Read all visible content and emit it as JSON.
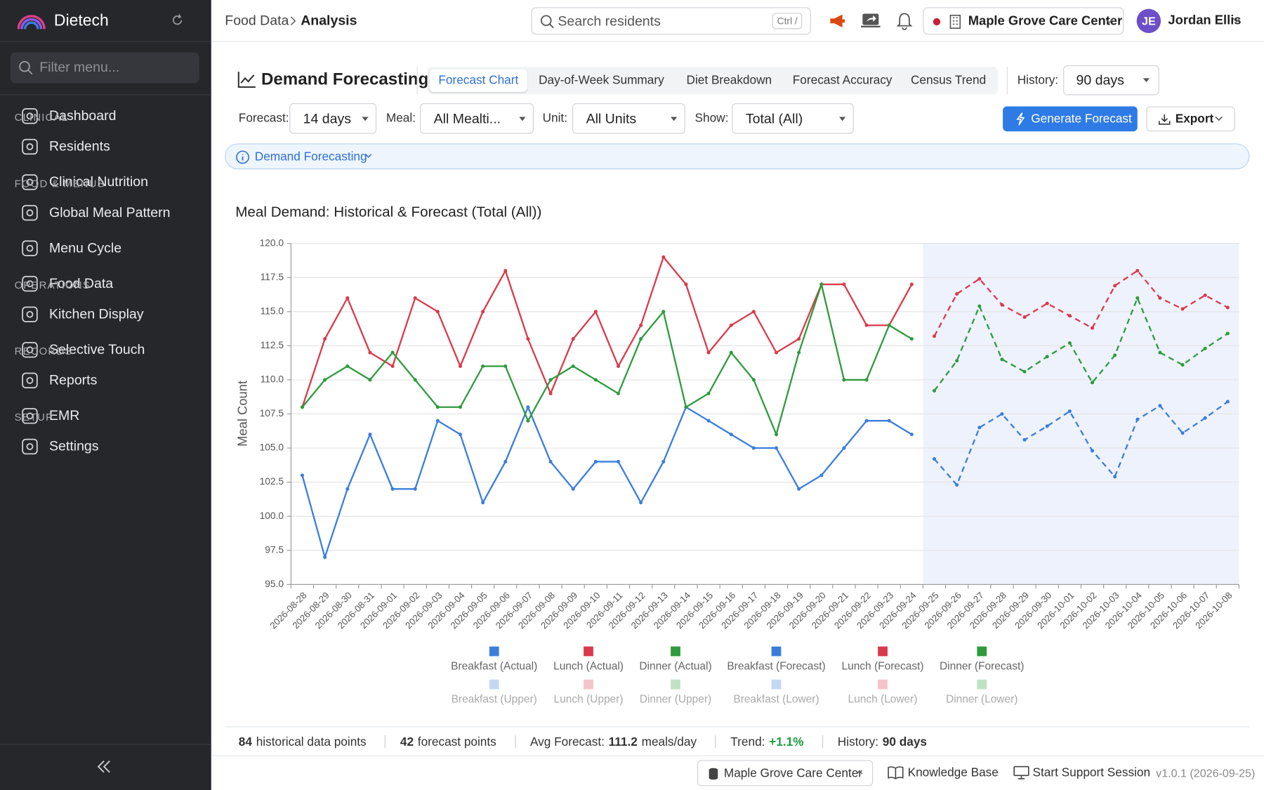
{
  "sidebar": {
    "brand": "Dietech",
    "filter_placeholder": "Filter menu...",
    "sections": [
      {
        "items": [
          "Dashboard"
        ]
      },
      {
        "title": "CLINICAL",
        "items": [
          "Residents",
          "Clinical Nutrition"
        ]
      },
      {
        "title": "FOOD & MENUS",
        "items": [
          "Global Meal Pattern",
          "Menu Cycle",
          "Food Data"
        ]
      },
      {
        "title": "OPERATIONS",
        "items": [
          "Kitchen Display",
          "Selective Touch"
        ]
      },
      {
        "title": "RECORDS",
        "items": [
          "Reports",
          "EMR"
        ]
      },
      {
        "title": "SETUP",
        "items": [
          "Settings"
        ]
      }
    ]
  },
  "header": {
    "breadcrumb": [
      "Food Data",
      "Analysis"
    ],
    "search_placeholder": "Search residents",
    "search_shortcut": "Ctrl /",
    "facility": "Maple Grove Care Center",
    "user_initials": "JE",
    "user_name": "Jordan Ellis"
  },
  "toolbar": {
    "title": "Demand Forecasting",
    "tabs": [
      "Forecast Chart",
      "Day-of-Week Summary",
      "Diet Breakdown",
      "Forecast Accuracy",
      "Census Trend"
    ],
    "active_tab": 0,
    "history_label": "History:",
    "history_value": "90 days",
    "filters": [
      {
        "label": "Forecast:",
        "value": "14 days"
      },
      {
        "label": "Meal:",
        "value": "All Mealti..."
      },
      {
        "label": "Unit:",
        "value": "All Units"
      },
      {
        "label": "Show:",
        "value": "Total (All)"
      }
    ],
    "generate_button": "Generate Forecast",
    "export_button": "Export",
    "info": "Demand Forecasting"
  },
  "chart_data": {
    "type": "line",
    "title": "Meal Demand: Historical & Forecast (Total (All))",
    "y_label": "Meal Count",
    "categories": [
      "2026-08-28",
      "2026-08-29",
      "2026-08-30",
      "2026-08-31",
      "2026-09-01",
      "2026-09-02",
      "2026-09-03",
      "2026-09-04",
      "2026-09-05",
      "2026-09-06",
      "2026-09-07",
      "2026-09-08",
      "2026-09-09",
      "2026-09-10",
      "2026-09-11",
      "2026-09-12",
      "2026-09-13",
      "2026-09-14",
      "2026-09-15",
      "2026-09-16",
      "2026-09-17",
      "2026-09-18",
      "2026-09-19",
      "2026-09-20",
      "2026-09-21",
      "2026-09-22",
      "2026-09-23",
      "2026-09-24",
      "2026-09-25",
      "2026-09-26",
      "2026-09-27",
      "2026-09-28",
      "2026-09-29",
      "2026-09-30",
      "2026-10-01",
      "2026-10-02",
      "2026-10-03",
      "2026-10-04",
      "2026-10-05",
      "2026-10-06",
      "2026-10-07",
      "2026-10-08"
    ],
    "ylim": [
      95,
      120
    ],
    "yticks": [
      {
        "value": 95,
        "label": "95.0"
      },
      {
        "value": 97.5,
        "label": "97.5"
      },
      {
        "value": 100,
        "label": "100.0"
      },
      {
        "value": 102.5,
        "label": "102.5"
      },
      {
        "value": 105,
        "label": "105.0"
      },
      {
        "value": 107.5,
        "label": "107.5"
      },
      {
        "value": 110,
        "label": "110.0"
      },
      {
        "value": 112.5,
        "label": "112.5"
      },
      {
        "value": 115,
        "label": "115.0"
      },
      {
        "value": 117.5,
        "label": "117.5"
      },
      {
        "value": 120,
        "label": "120.0"
      }
    ],
    "grid": true,
    "series": [
      {
        "name": "Breakfast (Actual)",
        "color": "#3b7ddd",
        "values": [
          103,
          97,
          102,
          106,
          102,
          102,
          107,
          106,
          101,
          104,
          108,
          104,
          102,
          104,
          104,
          101,
          104,
          108,
          107,
          106,
          105,
          105,
          102,
          103,
          105,
          107,
          107,
          106,
          null,
          null,
          null,
          null,
          null,
          null,
          null,
          null,
          null,
          null,
          null,
          null,
          null,
          null
        ]
      },
      {
        "name": "Lunch (Actual)",
        "color": "#d93a4b",
        "values": [
          108,
          113,
          116,
          112,
          111,
          116,
          115,
          111,
          115,
          118,
          113,
          109,
          113,
          115,
          111,
          114,
          119,
          117,
          112,
          114,
          115,
          112,
          113,
          117,
          117,
          114,
          114,
          117,
          null,
          null,
          null,
          null,
          null,
          null,
          null,
          null,
          null,
          null,
          null,
          null,
          null,
          null
        ]
      },
      {
        "name": "Dinner (Actual)",
        "color": "#2e9b3e",
        "values": [
          108,
          110,
          111,
          110,
          112,
          110,
          108,
          108,
          111,
          111,
          107,
          110,
          111,
          110,
          109,
          113,
          115,
          108,
          109,
          112,
          110,
          106,
          112,
          117,
          110,
          110,
          114,
          113,
          null,
          null,
          null,
          null,
          null,
          null,
          null,
          null,
          null,
          null,
          null,
          null,
          null,
          null
        ]
      },
      {
        "name": "Breakfast (Forecast)",
        "color": "#3b7ddd",
        "dashed": true,
        "values": [
          null,
          null,
          null,
          null,
          null,
          null,
          null,
          null,
          null,
          null,
          null,
          null,
          null,
          null,
          null,
          null,
          null,
          null,
          null,
          null,
          null,
          null,
          null,
          null,
          null,
          null,
          null,
          null,
          104.2,
          102.3,
          106.5,
          107.5,
          105.6,
          106.6,
          107.7,
          104.8,
          102.9,
          107.1,
          108.1,
          106.1,
          107.2,
          108.4
        ]
      },
      {
        "name": "Lunch (Forecast)",
        "color": "#d93a4b",
        "dashed": true,
        "values": [
          null,
          null,
          null,
          null,
          null,
          null,
          null,
          null,
          null,
          null,
          null,
          null,
          null,
          null,
          null,
          null,
          null,
          null,
          null,
          null,
          null,
          null,
          null,
          null,
          null,
          null,
          null,
          null,
          113.2,
          116.3,
          117.4,
          115.5,
          114.6,
          115.6,
          114.7,
          113.8,
          116.9,
          118.0,
          116.0,
          115.2,
          116.2,
          115.3
        ]
      },
      {
        "name": "Dinner (Forecast)",
        "color": "#2e9b3e",
        "dashed": true,
        "values": [
          null,
          null,
          null,
          null,
          null,
          null,
          null,
          null,
          null,
          null,
          null,
          null,
          null,
          null,
          null,
          null,
          null,
          null,
          null,
          null,
          null,
          null,
          null,
          null,
          null,
          null,
          null,
          null,
          109.2,
          111.4,
          115.4,
          111.5,
          110.6,
          111.7,
          112.7,
          109.8,
          111.8,
          116.0,
          112.0,
          111.1,
          112.3,
          113.4
        ]
      },
      {
        "name": "Breakfast (Upper)",
        "color": "#3b7ddd",
        "hidden": true
      },
      {
        "name": "Lunch (Upper)",
        "color": "#d93a4b",
        "hidden": true
      },
      {
        "name": "Dinner (Upper)",
        "color": "#2e9b3e",
        "hidden": true
      },
      {
        "name": "Breakfast (Lower)",
        "color": "#3b7ddd",
        "hidden": true
      },
      {
        "name": "Lunch (Lower)",
        "color": "#d93a4b",
        "hidden": true
      },
      {
        "name": "Dinner (Lower)",
        "color": "#2e9b3e",
        "hidden": true
      }
    ],
    "forecast_shade": "#eef2fc"
  },
  "stats": [
    {
      "value": "84",
      "text": "historical data points"
    },
    {
      "value": "42",
      "text": "forecast points"
    },
    {
      "label": "Avg Forecast:",
      "value": "111.2",
      "unit": "meals/day"
    },
    {
      "label": "Trend:",
      "value": "+1.1%",
      "value_color": "#1e9e3e"
    },
    {
      "label": "History:",
      "value": "90 days"
    }
  ],
  "footer": {
    "facility": "Maple Grove Care Center",
    "links": [
      "Knowledge Base",
      "Start Support Session"
    ],
    "version": "v1.0.1 (2026-09-25)"
  }
}
